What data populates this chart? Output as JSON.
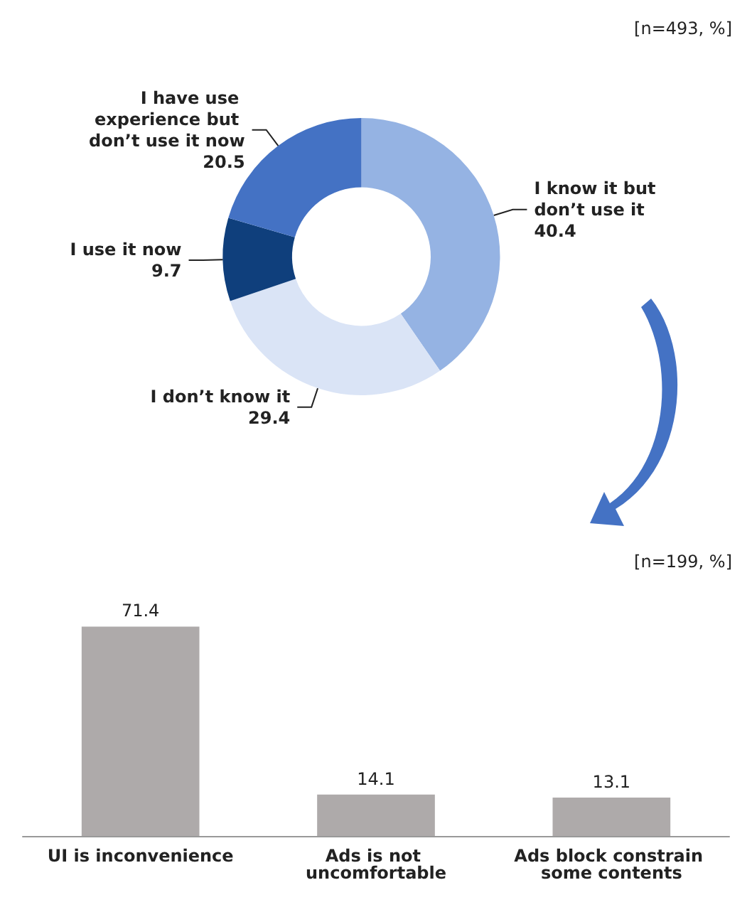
{
  "chart_data": [
    {
      "type": "donut",
      "categories": [
        "I know it but don’t use it",
        "I don’t know it",
        "I use it now",
        "I have use experience but don’t use it now"
      ],
      "values": [
        40.4,
        29.4,
        9.7,
        20.5
      ],
      "colors": [
        "#95b3e3",
        "#dae4f6",
        "#0f3f7c",
        "#4472c4"
      ],
      "data_labels": true,
      "annotations": [
        "[n=493, %]"
      ]
    },
    {
      "type": "bar",
      "categories": [
        "UI is inconvenience",
        "Ads is not uncomfortable",
        "Ads block constrain some contents"
      ],
      "values": [
        71.4,
        14.1,
        13.1
      ],
      "color": "#aeaaaa",
      "data_labels": true,
      "annotations": [
        "[n=199, %]"
      ]
    }
  ]
}
